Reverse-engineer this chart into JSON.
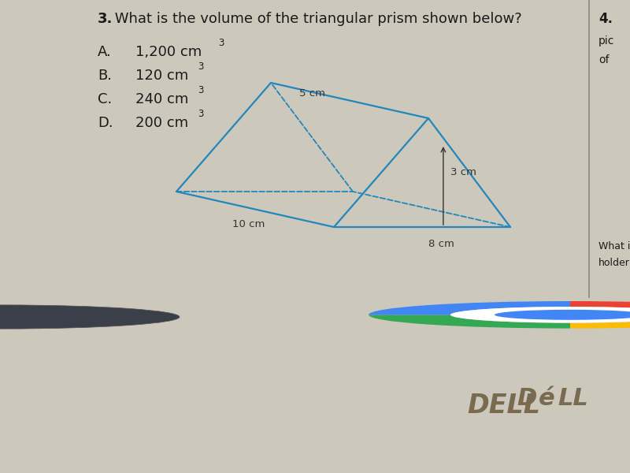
{
  "title_bold": "3.",
  "title_rest": " What is the volume of the triangular prism shown below?",
  "choices": [
    {
      "letter": "A.",
      "text": "1,200 cm",
      "sup": "3"
    },
    {
      "letter": "B.",
      "text": "120 cm",
      "sup": "3"
    },
    {
      "letter": "C.",
      "text": "240 cm",
      "sup": "3"
    },
    {
      "letter": "D.",
      "text": "200 cm",
      "sup": "3"
    }
  ],
  "bg_color": "#cdc8bc",
  "screen_color": "#d4cfc3",
  "text_color": "#1a1a1a",
  "prism_color": "#2288bb",
  "label_5cm": "5 cm",
  "label_10cm": "10 cm",
  "label_3cm": "3 cm",
  "label_8cm": "8 cm",
  "right_text": [
    "4.",
    "pic",
    "of"
  ],
  "bottom_right_text": [
    "What is",
    "holder"
  ],
  "taskbar_color": "#2e3340",
  "bezel_color": "#1a1a1a",
  "dell_color": "#7a6a50"
}
